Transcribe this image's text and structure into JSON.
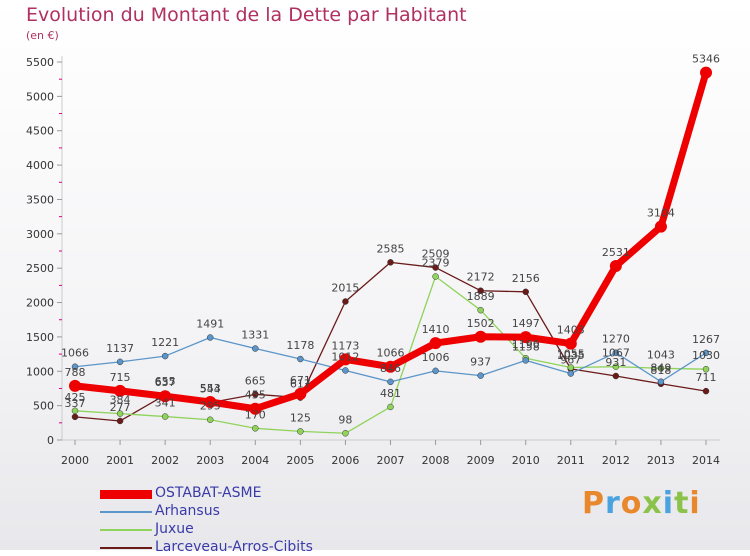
{
  "chart_data": {
    "type": "line",
    "title": "Evolution du Montant de la Dette par Habitant",
    "subtitle": "(en €)",
    "x": [
      "2000",
      "2001",
      "2002",
      "2003",
      "2004",
      "2005",
      "2006",
      "2007",
      "2008",
      "2009",
      "2010",
      "2011",
      "2012",
      "2013",
      "2014"
    ],
    "ylim": [
      0,
      5500
    ],
    "yticks": [
      0,
      500,
      1000,
      1500,
      2000,
      2500,
      3000,
      3500,
      4000,
      4500,
      5000,
      5500
    ],
    "grid": false,
    "legend_position": "bottom-left",
    "series": [
      {
        "name": "OSTABAT-ASME",
        "color": "#ee0000",
        "values": [
          788,
          715,
          637,
          553,
          455,
          671,
          1173,
          1066,
          1410,
          1502,
          1497,
          1403,
          2531,
          3104,
          5346
        ]
      },
      {
        "name": "Arhansus",
        "color": "#5b95c9",
        "values": [
          1066,
          1137,
          1221,
          1491,
          1331,
          1178,
          1012,
          846,
          1006,
          937,
          1158,
          967,
          1270,
          849,
          1267
        ]
      },
      {
        "name": "Juxue",
        "color": "#8fd35a",
        "values": [
          425,
          384,
          341,
          295,
          170,
          125,
          98,
          481,
          2379,
          1889,
          1190,
          1055,
          1067,
          1043,
          1030
        ]
      },
      {
        "name": "Larceveau-Arros-Cibits",
        "color": "#6b1a1a",
        "values": [
          337,
          277,
          655,
          544,
          665,
          617,
          2015,
          2585,
          2509,
          2172,
          2156,
          1035,
          931,
          818,
          711
        ]
      }
    ]
  },
  "logo": {
    "letters": [
      "P",
      "r",
      "o",
      "x",
      "i",
      "t",
      "i"
    ],
    "colors": [
      "#e8872b",
      "#4aa3df",
      "#e8872b",
      "#8bc34a",
      "#4aa3df",
      "#8bc34a",
      "#e8872b"
    ]
  }
}
